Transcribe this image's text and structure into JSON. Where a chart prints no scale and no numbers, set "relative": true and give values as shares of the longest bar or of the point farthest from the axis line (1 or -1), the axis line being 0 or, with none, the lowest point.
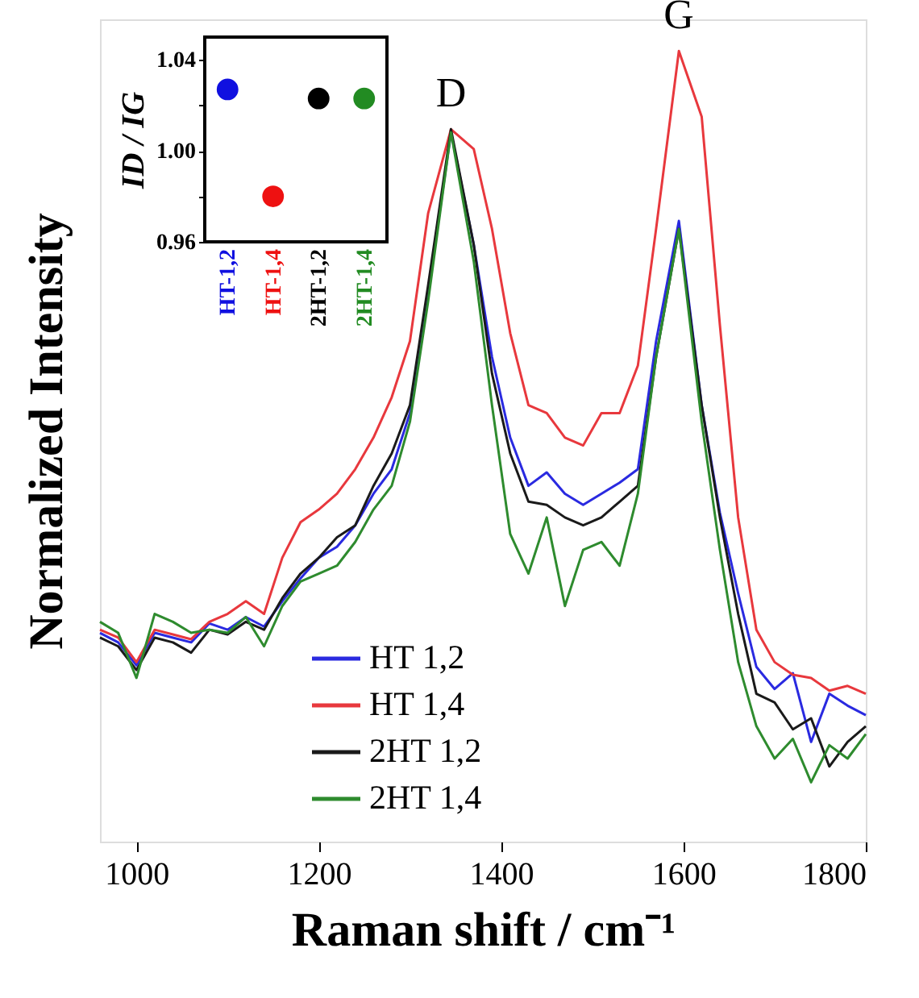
{
  "chart_data": [
    {
      "type": "line",
      "relative": true,
      "xlabel": "Raman shift / cm⁻¹",
      "ylabel": "Normalized Intensity",
      "xlim": [
        960,
        1800
      ],
      "xticks": [
        1000,
        1200,
        1400,
        1600,
        1800
      ],
      "legend": "bottom",
      "grid": false,
      "line_style": "solid",
      "marker": "none",
      "x": [
        960,
        980,
        1000,
        1020,
        1040,
        1060,
        1080,
        1100,
        1120,
        1140,
        1160,
        1180,
        1200,
        1220,
        1240,
        1260,
        1280,
        1300,
        1320,
        1345,
        1370,
        1390,
        1410,
        1430,
        1450,
        1470,
        1490,
        1510,
        1530,
        1550,
        1570,
        1595,
        1620,
        1640,
        1660,
        1680,
        1700,
        1720,
        1740,
        1760,
        1780,
        1800
      ],
      "annotations": [
        {
          "text": "D",
          "x": 1345,
          "y": 0.901
        },
        {
          "text": "G",
          "x": 1595,
          "y": 1.0
        }
      ],
      "series": [
        {
          "name": "HT 1,2",
          "color": "#2a2ae0",
          "values": [
            0.264,
            0.252,
            0.223,
            0.264,
            0.258,
            0.252,
            0.276,
            0.268,
            0.284,
            0.272,
            0.304,
            0.333,
            0.359,
            0.373,
            0.4,
            0.44,
            0.471,
            0.542,
            0.694,
            0.897,
            0.755,
            0.613,
            0.511,
            0.45,
            0.467,
            0.44,
            0.426,
            0.44,
            0.454,
            0.471,
            0.633,
            0.785,
            0.552,
            0.416,
            0.314,
            0.221,
            0.193,
            0.213,
            0.126,
            0.187,
            0.172,
            0.16
          ]
        },
        {
          "name": "HT 1,4",
          "color": "#e8383d",
          "values": [
            0.268,
            0.258,
            0.227,
            0.268,
            0.262,
            0.256,
            0.278,
            0.288,
            0.304,
            0.288,
            0.359,
            0.404,
            0.42,
            0.44,
            0.471,
            0.511,
            0.562,
            0.633,
            0.795,
            0.901,
            0.876,
            0.775,
            0.643,
            0.552,
            0.542,
            0.511,
            0.501,
            0.542,
            0.542,
            0.602,
            0.775,
            1.0,
            0.917,
            0.653,
            0.41,
            0.268,
            0.227,
            0.211,
            0.207,
            0.191,
            0.197,
            0.187
          ]
        },
        {
          "name": "2HT 1,2",
          "color": "#1a1a1a",
          "values": [
            0.258,
            0.247,
            0.217,
            0.258,
            0.252,
            0.239,
            0.268,
            0.262,
            0.278,
            0.268,
            0.308,
            0.339,
            0.359,
            0.385,
            0.4,
            0.45,
            0.491,
            0.552,
            0.704,
            0.901,
            0.755,
            0.592,
            0.491,
            0.43,
            0.426,
            0.41,
            0.4,
            0.41,
            0.43,
            0.45,
            0.613,
            0.775,
            0.552,
            0.41,
            0.288,
            0.187,
            0.176,
            0.142,
            0.156,
            0.095,
            0.126,
            0.146
          ]
        },
        {
          "name": "2HT 1,4",
          "color": "#2e8b2e",
          "values": [
            0.278,
            0.264,
            0.207,
            0.288,
            0.278,
            0.264,
            0.268,
            0.264,
            0.284,
            0.247,
            0.298,
            0.329,
            0.339,
            0.349,
            0.379,
            0.42,
            0.45,
            0.531,
            0.684,
            0.897,
            0.734,
            0.552,
            0.389,
            0.339,
            0.41,
            0.298,
            0.369,
            0.379,
            0.349,
            0.44,
            0.613,
            0.775,
            0.531,
            0.369,
            0.227,
            0.146,
            0.105,
            0.13,
            0.075,
            0.122,
            0.105,
            0.136
          ]
        }
      ]
    },
    {
      "type": "scatter",
      "ylabel": "ID / IG",
      "marker": "circle",
      "grid": false,
      "categories": [
        "HT-1,2",
        "HT-1,4",
        "2HT-1,2",
        "2HT-1,4"
      ],
      "values": [
        1.027,
        0.98,
        1.023,
        1.023
      ],
      "colors": [
        "#1010e0",
        "#ee1111",
        "#000000",
        "#228b22"
      ],
      "ylim": [
        0.96,
        1.05
      ],
      "yticks": [
        {
          "value": 0.96,
          "label": "0.96"
        },
        {
          "value": 0.98,
          "label": null
        },
        {
          "value": 1.0,
          "label": "1.00"
        },
        {
          "value": 1.02,
          "label": null
        },
        {
          "value": 1.04,
          "label": "1.04"
        }
      ]
    }
  ]
}
